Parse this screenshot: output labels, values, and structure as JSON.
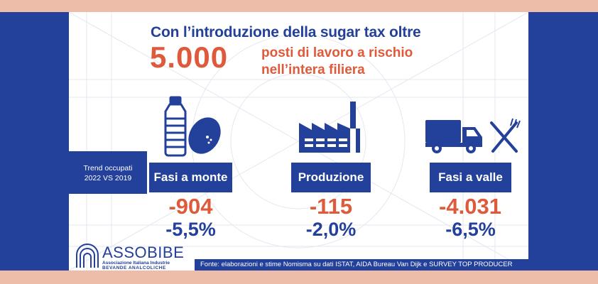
{
  "header": {
    "line1": "Con l’introduzione della sugar tax oltre",
    "big_number": "5.000",
    "line2": "posti di lavoro a rischio",
    "line3": "nell’intera filiera"
  },
  "trend_box": {
    "line1": "Trend occupati",
    "line2": "2022 VS 2019"
  },
  "columns": [
    {
      "label": "Fasi a monte",
      "value": "-904",
      "percent": "-5,5%",
      "icon": "bottle-lemon-icon"
    },
    {
      "label": "Produzione",
      "value": "-115",
      "percent": "-2,0%",
      "icon": "factory-icon"
    },
    {
      "label": "Fasi a valle",
      "value": "-4.031",
      "percent": "-6,5%",
      "icon": "truck-cutlery-icon"
    }
  ],
  "logo": {
    "name": "ASSOBIBE",
    "subtitle1": "Associazione Italiana Industrie",
    "subtitle2": "BEVANDE ANALCOLICHE"
  },
  "source": "Fonte: elaborazioni e stime Nomisma su dati ISTAT, AIDA Bureau Van Dijk e SURVEY TOP PRODUCER",
  "colors": {
    "brand_blue": "#23409a",
    "accent_red": "#de5a3b",
    "border_pink": "#eebdaa"
  }
}
